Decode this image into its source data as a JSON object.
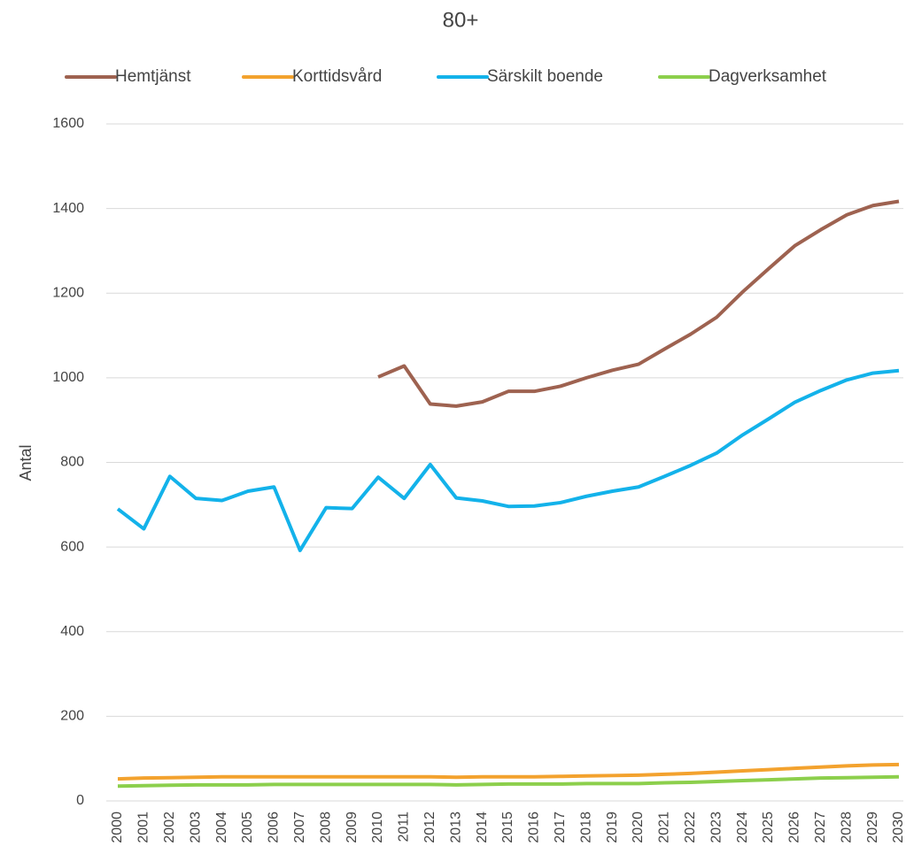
{
  "chart_data": {
    "type": "line",
    "title": "80+",
    "y_label": "Antal",
    "categories": [
      "2000",
      "2001",
      "2002",
      "2003",
      "2004",
      "2005",
      "2006",
      "2007",
      "2008",
      "2009",
      "2010",
      "2011",
      "2012",
      "2013",
      "2014",
      "2015",
      "2016",
      "2017",
      "2018",
      "2019",
      "2020",
      "2021",
      "2022",
      "2023",
      "2024",
      "2025",
      "2026",
      "2027",
      "2028",
      "2029",
      "2030"
    ],
    "series": [
      {
        "name": "Hemtjänst",
        "color": "#9e6250",
        "values": [
          null,
          null,
          null,
          null,
          null,
          null,
          null,
          null,
          null,
          null,
          1002,
          1028,
          938,
          933,
          943,
          968,
          968,
          980,
          1000,
          1018,
          1032,
          1068,
          1103,
          1143,
          1203,
          1258,
          1312,
          1350,
          1385,
          1407,
          1417
        ]
      },
      {
        "name": "Korttidsvård",
        "color": "#f3a22e",
        "values": [
          52,
          54,
          55,
          56,
          57,
          57,
          57,
          57,
          57,
          57,
          57,
          57,
          57,
          56,
          57,
          57,
          57,
          58,
          59,
          60,
          61,
          63,
          65,
          68,
          71,
          74,
          77,
          80,
          83,
          85,
          86
        ]
      },
      {
        "name": "Särskilt boende",
        "color": "#13b2ea",
        "values": [
          690,
          643,
          767,
          715,
          710,
          732,
          742,
          592,
          693,
          691,
          765,
          715,
          795,
          716,
          709,
          696,
          697,
          705,
          720,
          732,
          742,
          767,
          793,
          822,
          865,
          903,
          942,
          970,
          995,
          1011,
          1017
        ]
      },
      {
        "name": "Dagverksamhet",
        "color": "#8ccf4c",
        "values": [
          35,
          36,
          37,
          38,
          38,
          38,
          39,
          39,
          39,
          39,
          39,
          39,
          39,
          38,
          39,
          40,
          40,
          40,
          41,
          41,
          41,
          43,
          44,
          46,
          48,
          50,
          52,
          54,
          55,
          56,
          57
        ]
      }
    ],
    "ylim": [
      0,
      1600
    ],
    "yticks": [
      0,
      200,
      400,
      600,
      800,
      1000,
      1200,
      1400,
      1600
    ],
    "grid": true,
    "legend": "top"
  }
}
